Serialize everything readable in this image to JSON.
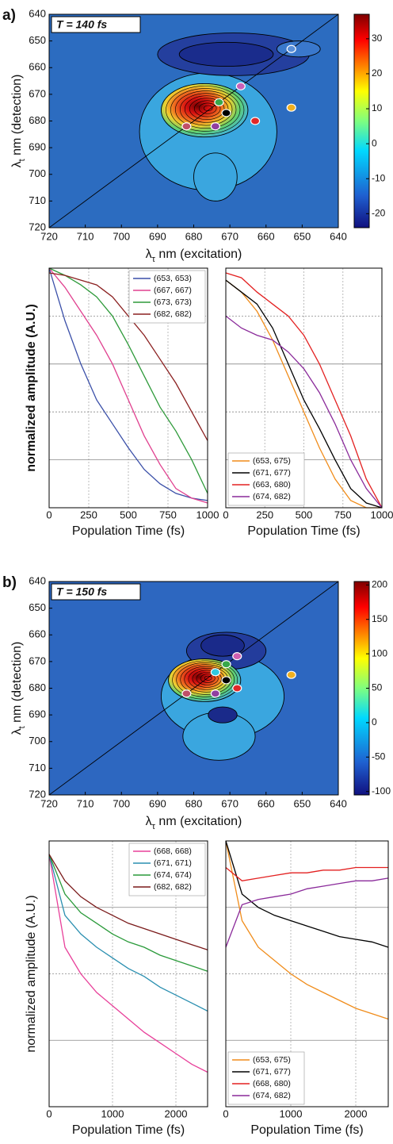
{
  "chart_data": [
    {
      "type": "contour",
      "panel": "a)",
      "title": "T = 140 fs",
      "xlabel": [
        "λ",
        "τ",
        " nm (excitation)"
      ],
      "ylabel": [
        "λ",
        "t",
        " nm (detection)"
      ],
      "xlim": [
        720,
        640
      ],
      "xticks": [
        720,
        710,
        700,
        690,
        680,
        670,
        660,
        650,
        640
      ],
      "ylim": [
        720,
        640
      ],
      "yticks": [
        640,
        650,
        660,
        670,
        680,
        690,
        700,
        710,
        720
      ],
      "clim": [
        -24,
        37
      ],
      "cticks": [
        -20,
        -10,
        0,
        10,
        20,
        30
      ],
      "points": {
        "x": [
          653,
          667,
          673,
          682,
          653,
          671,
          663,
          674
        ],
        "y": [
          653,
          667,
          673,
          682,
          675,
          677,
          680,
          682
        ],
        "colors": [
          "#5a8fd8",
          "#c860b8",
          "#38a84a",
          "#c05068",
          "#f0b020",
          "#000000",
          "#e02828",
          "#9040a0"
        ]
      }
    },
    {
      "type": "line",
      "ylabel": "normalized amplitude (A.U.)",
      "xlabel": "Population Time (fs)",
      "xlim": [
        0,
        1000
      ],
      "xticks": [
        0,
        250,
        500,
        750,
        1000
      ],
      "ylim": [
        0,
        1
      ],
      "yticks": [
        0.2,
        0.4,
        0.6,
        0.8
      ],
      "legend": "upper right",
      "x": [
        0,
        100,
        200,
        300,
        400,
        500,
        600,
        700,
        800,
        900,
        1000
      ],
      "series": [
        {
          "name": "(653, 653)",
          "color": "#3a4fa8",
          "values": [
            1.0,
            0.78,
            0.6,
            0.45,
            0.35,
            0.25,
            0.16,
            0.1,
            0.06,
            0.04,
            0.03
          ]
        },
        {
          "name": "(667, 667)",
          "color": "#e0408f",
          "values": [
            1.0,
            0.92,
            0.82,
            0.72,
            0.6,
            0.45,
            0.3,
            0.18,
            0.08,
            0.04,
            0.02
          ]
        },
        {
          "name": "(673, 673)",
          "color": "#2e9a3a",
          "values": [
            1.0,
            0.97,
            0.93,
            0.88,
            0.8,
            0.68,
            0.55,
            0.42,
            0.32,
            0.2,
            0.06
          ]
        },
        {
          "name": "(682, 682)",
          "color": "#8b2020",
          "values": [
            0.98,
            0.97,
            0.95,
            0.93,
            0.88,
            0.8,
            0.72,
            0.62,
            0.52,
            0.4,
            0.28
          ]
        }
      ]
    },
    {
      "type": "line",
      "xlabel": "Population Time (fs)",
      "xlim": [
        0,
        1000
      ],
      "xticks": [
        0,
        250,
        500,
        750,
        1000
      ],
      "ylim": [
        0,
        1
      ],
      "yticks": [
        0.2,
        0.4,
        0.6,
        0.8
      ],
      "legend": "lower left",
      "x": [
        0,
        100,
        200,
        300,
        400,
        500,
        600,
        700,
        800,
        900,
        1000
      ],
      "series": [
        {
          "name": "(653, 675)",
          "color": "#f08c1a",
          "values": [
            0.95,
            0.9,
            0.82,
            0.7,
            0.55,
            0.4,
            0.25,
            0.12,
            0.03,
            0,
            0
          ]
        },
        {
          "name": "(671, 677)",
          "color": "#000000",
          "values": [
            0.95,
            0.9,
            0.85,
            0.75,
            0.6,
            0.45,
            0.33,
            0.2,
            0.08,
            0.02,
            0
          ]
        },
        {
          "name": "(663, 680)",
          "color": "#e32020",
          "values": [
            0.98,
            0.96,
            0.9,
            0.85,
            0.8,
            0.72,
            0.6,
            0.45,
            0.3,
            0.12,
            0
          ]
        },
        {
          "name": "(674, 682)",
          "color": "#8a2a9a",
          "values": [
            0.8,
            0.75,
            0.72,
            0.7,
            0.65,
            0.58,
            0.48,
            0.35,
            0.2,
            0.08,
            0
          ]
        }
      ]
    },
    {
      "type": "contour",
      "panel": "b)",
      "title": "T = 150 fs",
      "xlabel": [
        "λ",
        "τ",
        " nm (excitation)"
      ],
      "ylabel": [
        "λ",
        "t",
        " nm (detection)"
      ],
      "xlim": [
        720,
        640
      ],
      "xticks": [
        720,
        710,
        700,
        690,
        680,
        670,
        660,
        650,
        640
      ],
      "ylim": [
        720,
        640
      ],
      "yticks": [
        640,
        650,
        660,
        670,
        680,
        690,
        700,
        710,
        720
      ],
      "clim": [
        -105,
        205
      ],
      "cticks": [
        -100,
        -50,
        0,
        50,
        100,
        150,
        200
      ],
      "points": {
        "x": [
          668,
          671,
          674,
          682,
          653,
          671,
          668,
          674
        ],
        "y": [
          668,
          671,
          674,
          682,
          675,
          677,
          680,
          682
        ],
        "colors": [
          "#d060b0",
          "#38a84a",
          "#30c8e0",
          "#c05068",
          "#f0b020",
          "#000000",
          "#e02828",
          "#9040a0"
        ]
      }
    },
    {
      "type": "line",
      "ylabel": "normalized amplitude (A.U.)",
      "xlabel": "Population Time (fs)",
      "xlim": [
        0,
        2500
      ],
      "xticks": [
        0,
        1000,
        2000
      ],
      "ylim": [
        0,
        1
      ],
      "yticks": [
        0.25,
        0.5,
        0.75
      ],
      "legend": "upper right",
      "x": [
        0,
        250,
        500,
        750,
        1000,
        1250,
        1500,
        1750,
        2000,
        2250,
        2500
      ],
      "series": [
        {
          "name": "(668, 668)",
          "color": "#e8409a",
          "values": [
            0.95,
            0.6,
            0.5,
            0.43,
            0.38,
            0.33,
            0.28,
            0.24,
            0.2,
            0.16,
            0.13
          ]
        },
        {
          "name": "(671, 671)",
          "color": "#2a8fb0",
          "values": [
            0.95,
            0.72,
            0.65,
            0.6,
            0.56,
            0.52,
            0.49,
            0.45,
            0.42,
            0.39,
            0.36
          ]
        },
        {
          "name": "(674, 674)",
          "color": "#2a9a3a",
          "values": [
            0.95,
            0.8,
            0.73,
            0.69,
            0.65,
            0.62,
            0.6,
            0.57,
            0.55,
            0.53,
            0.51
          ]
        },
        {
          "name": "(682, 682)",
          "color": "#7a1a1a",
          "values": [
            0.95,
            0.85,
            0.79,
            0.75,
            0.72,
            0.69,
            0.67,
            0.65,
            0.63,
            0.61,
            0.59
          ]
        }
      ]
    },
    {
      "type": "line",
      "xlabel": "Population Time (fs)",
      "xlim": [
        0,
        2500
      ],
      "xticks": [
        0,
        1000,
        2000
      ],
      "ylim": [
        0,
        1
      ],
      "yticks": [
        0.25,
        0.5,
        0.75
      ],
      "legend": "lower left",
      "x": [
        0,
        250,
        500,
        750,
        1000,
        1250,
        1500,
        1750,
        2000,
        2250,
        2500
      ],
      "series": [
        {
          "name": "(653, 675)",
          "color": "#f08c1a",
          "values": [
            1.0,
            0.7,
            0.6,
            0.55,
            0.5,
            0.46,
            0.43,
            0.4,
            0.37,
            0.35,
            0.33
          ]
        },
        {
          "name": "(671, 677)",
          "color": "#000000",
          "values": [
            1.0,
            0.8,
            0.75,
            0.72,
            0.7,
            0.68,
            0.66,
            0.64,
            0.63,
            0.62,
            0.6
          ]
        },
        {
          "name": "(668, 680)",
          "color": "#e32020",
          "values": [
            0.9,
            0.85,
            0.86,
            0.87,
            0.88,
            0.88,
            0.89,
            0.89,
            0.9,
            0.9,
            0.9
          ]
        },
        {
          "name": "(674, 682)",
          "color": "#8a2a9a",
          "values": [
            0.6,
            0.76,
            0.78,
            0.79,
            0.8,
            0.82,
            0.83,
            0.84,
            0.85,
            0.85,
            0.86
          ]
        }
      ]
    }
  ]
}
